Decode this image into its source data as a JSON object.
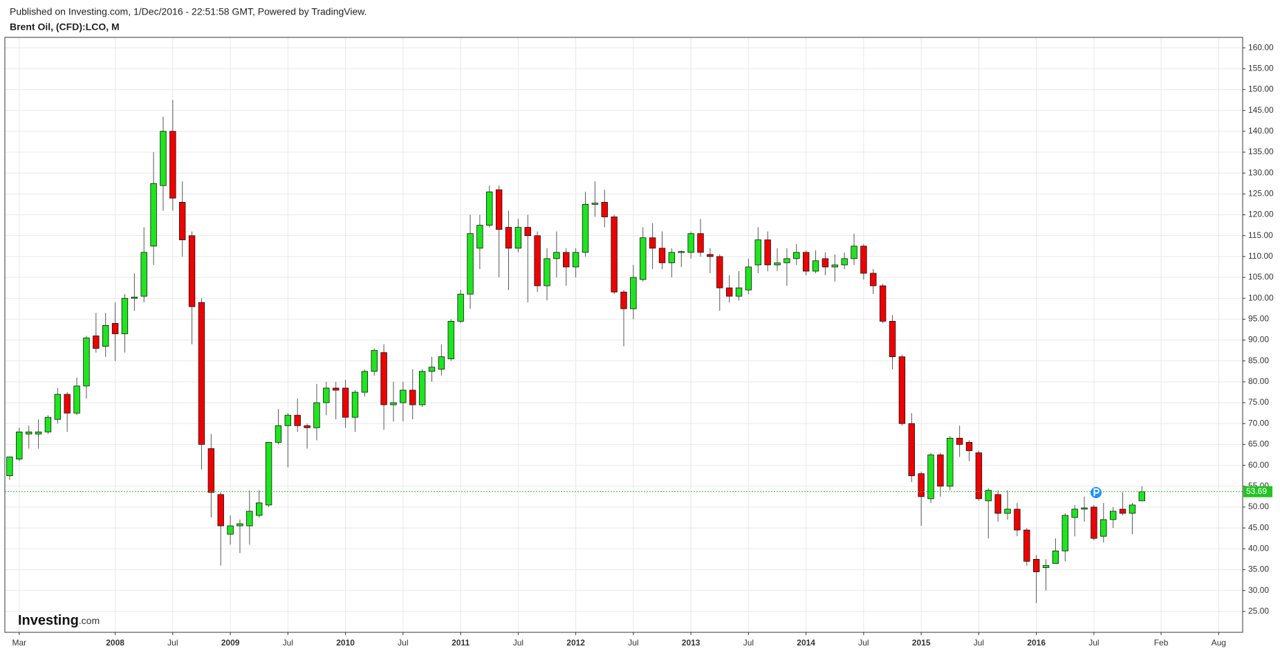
{
  "chart_data": {
    "type": "candlestick",
    "attribution": "Published on Investing.com, 1/Dec/2016 - 22:51:58 GMT, Powered by TradingView.",
    "title": "Brent Oil, (CFD):LCO, M",
    "logo": {
      "name": "Investing",
      "suffix": ".com"
    },
    "x": [
      "2007-02",
      "2007-03",
      "2007-04",
      "2007-05",
      "2007-06",
      "2007-07",
      "2007-08",
      "2007-09",
      "2007-10",
      "2007-11",
      "2007-12",
      "2008-01",
      "2008-02",
      "2008-03",
      "2008-04",
      "2008-05",
      "2008-06",
      "2008-07",
      "2008-08",
      "2008-09",
      "2008-10",
      "2008-11",
      "2008-12",
      "2009-01",
      "2009-02",
      "2009-03",
      "2009-04",
      "2009-05",
      "2009-06",
      "2009-07",
      "2009-08",
      "2009-09",
      "2009-10",
      "2009-11",
      "2009-12",
      "2010-01",
      "2010-02",
      "2010-03",
      "2010-04",
      "2010-05",
      "2010-06",
      "2010-07",
      "2010-08",
      "2010-09",
      "2010-10",
      "2010-11",
      "2010-12",
      "2011-01",
      "2011-02",
      "2011-03",
      "2011-04",
      "2011-05",
      "2011-06",
      "2011-07",
      "2011-08",
      "2011-09",
      "2011-10",
      "2011-11",
      "2011-12",
      "2012-01",
      "2012-02",
      "2012-03",
      "2012-04",
      "2012-05",
      "2012-06",
      "2012-07",
      "2012-08",
      "2012-09",
      "2012-10",
      "2012-11",
      "2012-12",
      "2013-01",
      "2013-02",
      "2013-03",
      "2013-04",
      "2013-05",
      "2013-06",
      "2013-07",
      "2013-08",
      "2013-09",
      "2013-10",
      "2013-11",
      "2013-12",
      "2014-01",
      "2014-02",
      "2014-03",
      "2014-04",
      "2014-05",
      "2014-06",
      "2014-07",
      "2014-08",
      "2014-09",
      "2014-10",
      "2014-11",
      "2014-12",
      "2015-01",
      "2015-02",
      "2015-03",
      "2015-04",
      "2015-05",
      "2015-06",
      "2015-07",
      "2015-08",
      "2015-09",
      "2015-10",
      "2015-11",
      "2015-12",
      "2016-01",
      "2016-02",
      "2016-03",
      "2016-04",
      "2016-05",
      "2016-06",
      "2016-07",
      "2016-08",
      "2016-09",
      "2016-10",
      "2016-11",
      "2016-12"
    ],
    "open": [
      57.5,
      61.5,
      67.5,
      67.5,
      68,
      71,
      77,
      72.5,
      79,
      91,
      88.5,
      94,
      91.5,
      100,
      100.5,
      112.5,
      127,
      140,
      123,
      115,
      99,
      64,
      53,
      43.5,
      45.5,
      45.5,
      48,
      50.5,
      65.5,
      69.5,
      72,
      69.5,
      69,
      75,
      78.5,
      78.5,
      71.5,
      77.5,
      82.5,
      87,
      74.5,
      75,
      78,
      74.5,
      82.5,
      83,
      85.5,
      94.5,
      101,
      112,
      117.5,
      126,
      117,
      112,
      117,
      115,
      103,
      109.5,
      111,
      107.5,
      111,
      122.5,
      123,
      119.5,
      101.5,
      97.5,
      104.5,
      114.5,
      112,
      108.5,
      111,
      111,
      115.5,
      110.5,
      110,
      102.5,
      100.5,
      102,
      108,
      114,
      108,
      108.5,
      109.5,
      111,
      106.5,
      109.5,
      107.5,
      108,
      109.5,
      112.5,
      106,
      103,
      94.5,
      86,
      70,
      58,
      52,
      62.5,
      55,
      66.5,
      65.5,
      63,
      51.5,
      53,
      48.5,
      49.5,
      44.5,
      37.5,
      35.5,
      36.5,
      39.5,
      47.5,
      49.5,
      50,
      43,
      47,
      49.5,
      48.5,
      51.5
    ],
    "high": [
      62,
      69,
      69.5,
      71,
      72,
      78.5,
      77.5,
      81,
      91,
      96.5,
      96.5,
      99,
      101,
      106,
      117,
      135,
      143.5,
      147.5,
      128,
      116,
      100,
      67.5,
      53.5,
      48,
      47,
      54,
      54,
      65.5,
      73.5,
      72.5,
      76,
      70,
      79.5,
      80,
      80,
      80.5,
      78,
      83,
      88,
      89,
      80,
      80,
      83,
      83,
      86,
      89,
      95,
      102,
      120,
      120,
      127,
      127,
      121,
      119,
      120,
      116,
      112,
      116,
      112,
      112,
      125.5,
      128,
      126,
      120,
      102,
      108,
      117,
      118,
      116,
      112,
      111.5,
      116,
      119,
      112,
      110.5,
      105.5,
      106.5,
      109.5,
      117,
      116,
      112,
      112,
      113,
      111.5,
      111.5,
      111,
      110.5,
      111,
      115.5,
      113,
      107,
      103.5,
      96,
      86.5,
      72.5,
      58.5,
      63,
      63,
      67,
      69.5,
      66,
      63.5,
      54.5,
      54,
      54,
      51,
      45,
      38.5,
      37.5,
      42.5,
      48.5,
      50.5,
      52.5,
      50.5,
      51,
      50,
      53.5,
      51,
      55
    ],
    "low": [
      56.5,
      61,
      64,
      64,
      67.5,
      70,
      68,
      72,
      76,
      87,
      86,
      85,
      87,
      97,
      99,
      108,
      121,
      121,
      110,
      89,
      59,
      47.5,
      36,
      41,
      39,
      41,
      47.5,
      50,
      65,
      59.5,
      68,
      64,
      66,
      72,
      71,
      69,
      68,
      76.5,
      81.5,
      68.5,
      70.5,
      70.5,
      71,
      74,
      80,
      81.5,
      85,
      94,
      97.5,
      107,
      117,
      105,
      102,
      111,
      99,
      101.5,
      99.5,
      105,
      103,
      105,
      110,
      119.5,
      117,
      101,
      88.5,
      95,
      104,
      107,
      107,
      105,
      107.5,
      109.5,
      110,
      106,
      97,
      99,
      99.5,
      101,
      106,
      106.5,
      106.5,
      103,
      108,
      105.5,
      106,
      105.5,
      104,
      107,
      108,
      104.5,
      101,
      94,
      83,
      69.5,
      56,
      45.5,
      51,
      52.5,
      54,
      62,
      61,
      51.5,
      42.5,
      46.5,
      47,
      43,
      36,
      27,
      30,
      36.5,
      37,
      43,
      46.5,
      42,
      41.5,
      45,
      48,
      43.5,
      51.5
    ],
    "close": [
      62,
      68,
      68,
      68,
      71.5,
      77,
      72.5,
      79,
      90.5,
      88,
      93.5,
      91.5,
      100,
      100.3,
      111,
      127.5,
      140,
      124,
      114,
      98,
      65,
      53.5,
      45.5,
      45.5,
      46,
      49,
      51,
      65.5,
      69.5,
      72,
      69.5,
      69,
      75,
      78.5,
      78,
      71.5,
      77.5,
      82.5,
      87.5,
      74.5,
      75,
      78,
      74.5,
      82.5,
      83.5,
      86,
      94.5,
      101,
      115.5,
      117.5,
      125.5,
      116.5,
      112,
      117,
      115,
      103,
      109.5,
      111,
      107.5,
      111,
      122.5,
      122.8,
      119.5,
      101.5,
      97.5,
      105,
      114.5,
      112,
      108.5,
      111,
      111.2,
      115.5,
      111,
      110,
      102.5,
      100.5,
      102.5,
      107.5,
      114,
      108,
      108.5,
      109.5,
      111,
      106.5,
      109,
      107.5,
      108,
      109.5,
      112.5,
      106,
      103,
      94.5,
      86,
      70,
      57.5,
      52.5,
      62.5,
      55,
      66.5,
      65,
      63.5,
      52,
      54,
      48.5,
      49.5,
      44.5,
      37,
      34.5,
      36,
      39.5,
      48,
      49.5,
      49.8,
      42.5,
      47,
      49,
      48.5,
      50.5,
      53.69
    ],
    "up_color": "#1ee61e",
    "down_color": "#f00000",
    "wick_color": "#555555",
    "last_price": 53.69,
    "last_price_color": "#22c322",
    "grid": true,
    "xlim": [
      "2007-02",
      "2017-10"
    ],
    "xticks": [
      {
        "value": "2007-03",
        "label": "Mar"
      },
      {
        "value": "2008-01",
        "label": "2008"
      },
      {
        "value": "2008-07",
        "label": "Jul"
      },
      {
        "value": "2009-01",
        "label": "2009"
      },
      {
        "value": "2009-07",
        "label": "Jul"
      },
      {
        "value": "2010-01",
        "label": "2010"
      },
      {
        "value": "2010-07",
        "label": "Jul"
      },
      {
        "value": "2011-01",
        "label": "2011"
      },
      {
        "value": "2011-07",
        "label": "Jul"
      },
      {
        "value": "2012-01",
        "label": "2012"
      },
      {
        "value": "2012-07",
        "label": "Jul"
      },
      {
        "value": "2013-01",
        "label": "2013"
      },
      {
        "value": "2013-07",
        "label": "Jul"
      },
      {
        "value": "2014-01",
        "label": "2014"
      },
      {
        "value": "2014-07",
        "label": "Jul"
      },
      {
        "value": "2015-01",
        "label": "2015"
      },
      {
        "value": "2015-07",
        "label": "Jul"
      },
      {
        "value": "2016-01",
        "label": "2016"
      },
      {
        "value": "2016-07",
        "label": "Jul"
      },
      {
        "value": "2017-02",
        "label": "Feb"
      },
      {
        "value": "2017-08",
        "label": "Aug"
      }
    ],
    "ylim": [
      20,
      162.5
    ],
    "yticks": [
      {
        "value": 25,
        "label": "25.00"
      },
      {
        "value": 30,
        "label": "30.00"
      },
      {
        "value": 35,
        "label": "35.00"
      },
      {
        "value": 40,
        "label": "40.00"
      },
      {
        "value": 45,
        "label": "45.00"
      },
      {
        "value": 50,
        "label": "50.00"
      },
      {
        "value": 55,
        "label": "55.00"
      },
      {
        "value": 60,
        "label": "60.00"
      },
      {
        "value": 65,
        "label": "65.00"
      },
      {
        "value": 70,
        "label": "70.00"
      },
      {
        "value": 75,
        "label": "75.00"
      },
      {
        "value": 80,
        "label": "80.00"
      },
      {
        "value": 85,
        "label": "85.00"
      },
      {
        "value": 90,
        "label": "90.00"
      },
      {
        "value": 95,
        "label": "95.00"
      },
      {
        "value": 100,
        "label": "100.00"
      },
      {
        "value": 105,
        "label": "105.00"
      },
      {
        "value": 110,
        "label": "110.00"
      },
      {
        "value": 115,
        "label": "115.00"
      },
      {
        "value": 120,
        "label": "120.00"
      },
      {
        "value": 125,
        "label": "125.00"
      },
      {
        "value": 130,
        "label": "130.00"
      },
      {
        "value": 135,
        "label": "135.00"
      },
      {
        "value": 140,
        "label": "140.00"
      },
      {
        "value": 145,
        "label": "145.00"
      },
      {
        "value": 150,
        "label": "150.00"
      },
      {
        "value": 155,
        "label": "155.00"
      },
      {
        "value": 160,
        "label": "160.00"
      }
    ]
  }
}
